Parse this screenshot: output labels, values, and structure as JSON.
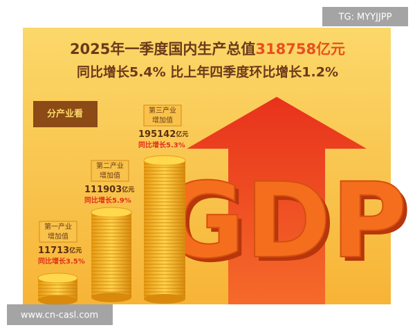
{
  "watermark_top": "TG: MYYJJPP",
  "headline": {
    "line1_prefix": "2025年一季度国内生产总值",
    "line1_value": "318758亿元",
    "line2": "同比增长5.4% 比上年四季度环比增长1.2%"
  },
  "tag": "分产业看",
  "industries": [
    {
      "name_line1": "第一产业",
      "name_line2": "增加值",
      "value": "11713",
      "unit": "亿元",
      "growth": "同比增长3.5%"
    },
    {
      "name_line1": "第二产业",
      "name_line2": "增加值",
      "value": "111903",
      "unit": "亿元",
      "growth": "同比增长5.9%"
    },
    {
      "name_line1": "第三产业",
      "name_line2": "增加值",
      "value": "195142",
      "unit": "亿元",
      "growth": "同比增长5.3%"
    }
  ],
  "logo": "GDP",
  "watermark_bottom": "www.cn-casl.com"
}
